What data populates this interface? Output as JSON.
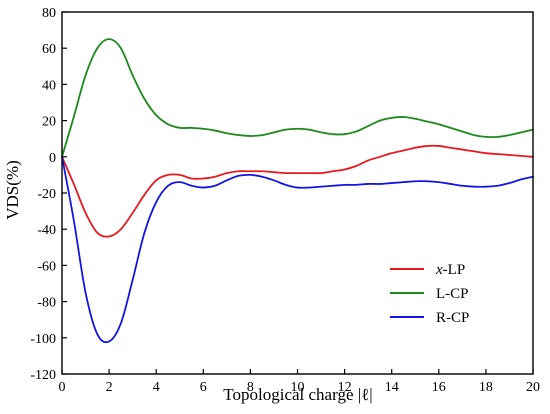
{
  "chart_data": {
    "type": "line",
    "xlabel": "Topological charge |ℓ|",
    "ylabel": "VDS(%)",
    "xlim": [
      0,
      20
    ],
    "ylim": [
      -120,
      80
    ],
    "xticks": [
      0,
      2,
      4,
      6,
      8,
      10,
      12,
      14,
      16,
      18,
      20
    ],
    "yticks": [
      -120,
      -100,
      -80,
      -60,
      -40,
      -20,
      0,
      20,
      40,
      60,
      80
    ],
    "grid": false,
    "legend_position": "bottom-right",
    "series": [
      {
        "name": "x-LP",
        "name_prefix": "x",
        "name_suffix": "-LP",
        "color": "#e8191e",
        "x": [
          0,
          0.5,
          1,
          1.5,
          2,
          2.5,
          3,
          3.5,
          4,
          4.5,
          5,
          5.5,
          6,
          6.5,
          7,
          7.5,
          8,
          8.5,
          9,
          9.5,
          10,
          10.5,
          11,
          11.5,
          12,
          12.5,
          13,
          13.5,
          14,
          14.5,
          15,
          15.5,
          16,
          16.5,
          17,
          17.5,
          18,
          18.5,
          19,
          19.5,
          20
        ],
        "y": [
          0,
          -15,
          -31,
          -42,
          -44,
          -40,
          -31,
          -21,
          -13,
          -10,
          -10,
          -12,
          -12,
          -11,
          -9,
          -8,
          -8,
          -8,
          -8.5,
          -9,
          -9,
          -9,
          -9,
          -8,
          -7,
          -5,
          -2,
          0,
          2,
          3.5,
          5,
          6,
          6,
          5,
          4,
          3,
          2,
          1.5,
          1,
          0.5,
          0
        ]
      },
      {
        "name": "L-CP",
        "color": "#1c8a1c",
        "x": [
          0,
          0.5,
          1,
          1.5,
          2,
          2.5,
          3,
          3.5,
          4,
          4.5,
          5,
          5.5,
          6,
          6.5,
          7,
          7.5,
          8,
          8.5,
          9,
          9.5,
          10,
          10.5,
          11,
          11.5,
          12,
          12.5,
          13,
          13.5,
          14,
          14.5,
          15,
          15.5,
          16,
          16.5,
          17,
          17.5,
          18,
          18.5,
          19,
          19.5,
          20
        ],
        "y": [
          0,
          22,
          45,
          60,
          65,
          60,
          45,
          32,
          23,
          18,
          16,
          16,
          15.5,
          14.5,
          13,
          12,
          11.5,
          12,
          13.5,
          15,
          15.5,
          15,
          13.5,
          12.5,
          12.5,
          14,
          17,
          20,
          21.5,
          22,
          21,
          19.5,
          18,
          16,
          14,
          12,
          11,
          11,
          12,
          13.5,
          15
        ]
      },
      {
        "name": "R-CP",
        "color": "#1414e6",
        "x": [
          0,
          0.5,
          1,
          1.5,
          2,
          2.5,
          3,
          3.5,
          4,
          4.5,
          5,
          5.5,
          6,
          6.5,
          7,
          7.5,
          8,
          8.5,
          9,
          9.5,
          10,
          10.5,
          11,
          11.5,
          12,
          12.5,
          13,
          13.5,
          14,
          14.5,
          15,
          15.5,
          16,
          16.5,
          17,
          17.5,
          18,
          18.5,
          19,
          19.5,
          20
        ],
        "y": [
          0,
          -35,
          -75,
          -98,
          -102,
          -92,
          -68,
          -42,
          -25,
          -16,
          -14,
          -16,
          -17,
          -16,
          -13,
          -10.5,
          -10,
          -11,
          -13,
          -15.5,
          -17,
          -17,
          -16.5,
          -16,
          -15.5,
          -15.5,
          -15,
          -15,
          -14.5,
          -14,
          -13.5,
          -13.5,
          -14,
          -15,
          -16,
          -16.5,
          -16.5,
          -16,
          -14.5,
          -12.5,
          -11
        ]
      }
    ]
  }
}
